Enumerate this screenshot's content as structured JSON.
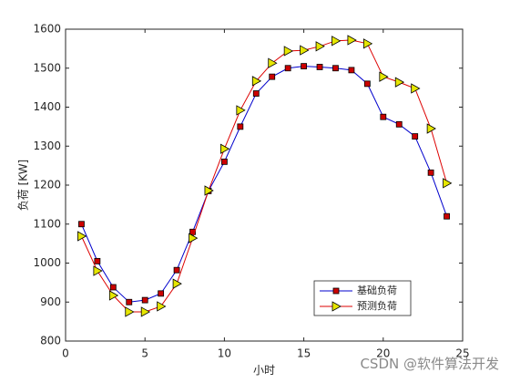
{
  "chart_data": {
    "type": "line",
    "x_label": "小时",
    "y_label": "负荷 [KW]",
    "x": [
      1,
      2,
      3,
      4,
      5,
      6,
      7,
      8,
      9,
      10,
      11,
      12,
      13,
      14,
      15,
      16,
      17,
      18,
      19,
      20,
      21,
      22,
      23,
      24
    ],
    "series": [
      {
        "name": "基础负荷",
        "color": "#0000cc",
        "marker": "square",
        "marker_color": "#cc0000",
        "values": [
          1100,
          1005,
          938,
          900,
          905,
          922,
          982,
          1080,
          1185,
          1260,
          1350,
          1435,
          1478,
          1500,
          1505,
          1503,
          1500,
          1495,
          1460,
          1375,
          1356,
          1325,
          1232,
          1120
        ]
      },
      {
        "name": "预测负荷",
        "color": "#dd0000",
        "marker": "triangle-right",
        "marker_color": "#e6e600",
        "values": [
          1069,
          980,
          917,
          875,
          875,
          889,
          947,
          1064,
          1186,
          1293,
          1392,
          1467,
          1513,
          1544,
          1546,
          1556,
          1570,
          1572,
          1563,
          1478,
          1464,
          1448,
          1345,
          1205
        ]
      }
    ],
    "xlim": [
      0,
      25
    ],
    "xticks": [
      0,
      5,
      10,
      15,
      20,
      25
    ],
    "ylim": [
      800,
      1600
    ],
    "yticks": [
      800,
      900,
      1000,
      1100,
      1200,
      1300,
      1400,
      1500,
      1600
    ],
    "grid": false,
    "legend": "lower-right",
    "watermark": "CSDN @软件算法开发"
  }
}
